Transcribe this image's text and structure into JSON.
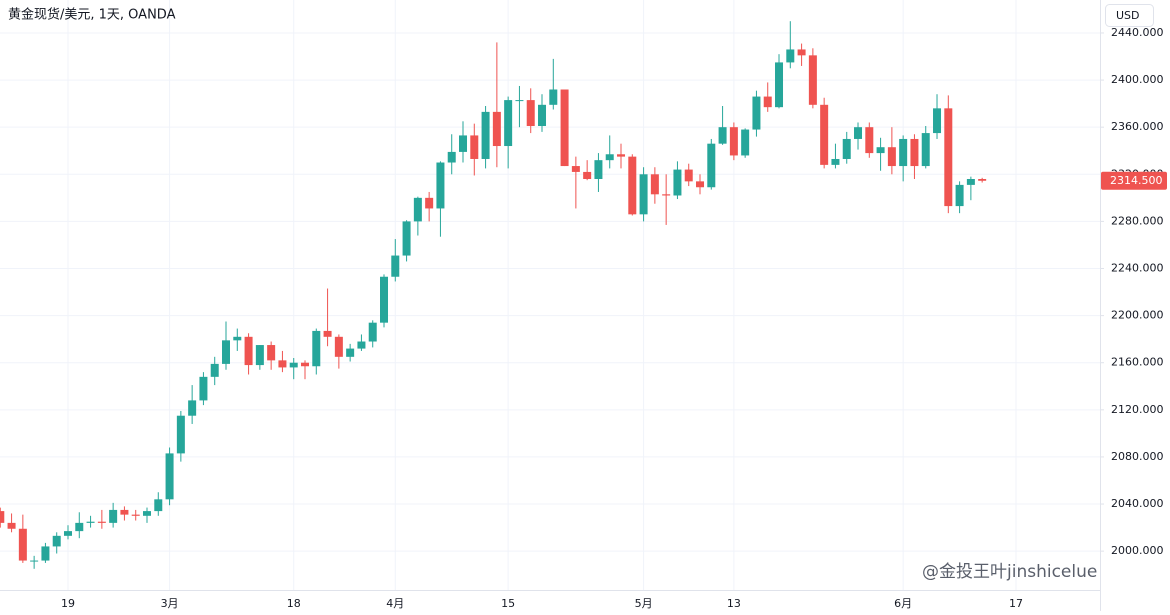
{
  "chart_data": {
    "type": "candlestick",
    "title": "黄金现货/美元, 1天, OANDA",
    "currency_button": "USD",
    "watermark": "@金投王叶jinshicelue",
    "up_color": "#26a69a",
    "down_color": "#ef5350",
    "grid": true,
    "categories": [
      null,
      null,
      null,
      null,
      null,
      null,
      "19",
      null,
      null,
      null,
      null,
      null,
      null,
      null,
      null,
      "3月",
      null,
      null,
      null,
      null,
      null,
      null,
      null,
      null,
      null,
      null,
      "18",
      null,
      null,
      null,
      null,
      null,
      null,
      null,
      null,
      "4月",
      null,
      null,
      null,
      null,
      null,
      null,
      null,
      null,
      null,
      "15",
      null,
      null,
      null,
      null,
      null,
      null,
      null,
      null,
      null,
      null,
      null,
      "5月",
      null,
      null,
      null,
      null,
      null,
      null,
      null,
      "13",
      null,
      null,
      null,
      null,
      null,
      null,
      null,
      null,
      null,
      null,
      null,
      null,
      null,
      null,
      "6月",
      null,
      null,
      null,
      null,
      null,
      null,
      null,
      null,
      null,
      "17",
      null,
      null,
      null,
      null,
      null,
      null
    ],
    "open": [
      2034,
      2024,
      2019,
      1992,
      1992,
      2004,
      2013,
      2017,
      2024,
      2025,
      2024,
      2035,
      2031,
      2030,
      2034,
      2044,
      2083,
      2115,
      2128,
      2148,
      2159,
      2179,
      2182,
      2158,
      2175,
      2162,
      2156,
      2160,
      2157,
      2187,
      2182,
      2165,
      2172,
      2178,
      2194,
      2233,
      2251,
      2280,
      2300,
      2291,
      2330,
      2339,
      2353,
      2333,
      2373,
      2344,
      2383,
      2383,
      2361,
      2379,
      2392,
      2327,
      2322,
      2316,
      2332,
      2337,
      2335,
      2286,
      2320,
      2303,
      2302,
      2324,
      2314,
      2309,
      2346,
      2360,
      2336,
      2358,
      2386,
      2377,
      2415,
      2426,
      2421,
      2379,
      2328,
      2333,
      2350,
      2360,
      2338,
      2343,
      2327,
      2350,
      2327,
      2355,
      2376,
      2293,
      2311,
      2316,
      null,
      null,
      null,
      null,
      null,
      null,
      null,
      null,
      null
    ],
    "high": [
      2037,
      2032,
      2031,
      1996,
      2007,
      2016,
      2022,
      2033,
      2030,
      2035,
      2041,
      2038,
      2035,
      2037,
      2050,
      2088,
      2119,
      2141,
      2152,
      2165,
      2195,
      2189,
      2185,
      2175,
      2178,
      2170,
      2164,
      2162,
      2189,
      2223,
      2184,
      2176,
      2184,
      2196,
      2235,
      2265,
      2281,
      2301,
      2305,
      2331,
      2354,
      2365,
      2363,
      2378,
      2432,
      2386,
      2395,
      2393,
      2388,
      2418,
      2392,
      2335,
      2332,
      2338,
      2353,
      2346,
      2337,
      2326,
      2326,
      2320,
      2331,
      2329,
      2320,
      2350,
      2378,
      2364,
      2359,
      2391,
      2398,
      2422,
      2450,
      2431,
      2427,
      2385,
      2346,
      2356,
      2364,
      2364,
      2351,
      2360,
      2353,
      2354,
      2361,
      2388,
      2387,
      2314,
      2318,
      2317,
      null,
      null,
      null,
      null,
      null,
      null,
      null,
      null,
      null
    ],
    "low": [
      2020,
      2016,
      1990,
      1985,
      1990,
      1998,
      2010,
      2011,
      2020,
      2019,
      2020,
      2026,
      2026,
      2024,
      2030,
      2039,
      2076,
      2108,
      2124,
      2141,
      2154,
      2170,
      2150,
      2154,
      2154,
      2152,
      2146,
      2146,
      2150,
      2174,
      2155,
      2161,
      2170,
      2173,
      2190,
      2229,
      2246,
      2268,
      2280,
      2267,
      2320,
      2330,
      2319,
      2325,
      2326,
      2325,
      2360,
      2355,
      2356,
      2375,
      2327,
      2291,
      2315,
      2305,
      2325,
      2325,
      2285,
      2280,
      2295,
      2277,
      2299,
      2310,
      2303,
      2307,
      2345,
      2332,
      2334,
      2352,
      2373,
      2376,
      2410,
      2412,
      2376,
      2325,
      2325,
      2329,
      2341,
      2334,
      2323,
      2320,
      2314,
      2316,
      2325,
      2350,
      2287,
      2287,
      2298,
      2313,
      null,
      null,
      null,
      null,
      null,
      null,
      null,
      null,
      null
    ],
    "close": [
      2024,
      2019,
      1992,
      1992,
      2004,
      2013,
      2017,
      2024,
      2025,
      2024,
      2035,
      2031,
      2030,
      2034,
      2044,
      2083,
      2115,
      2128,
      2148,
      2159,
      2179,
      2182,
      2158,
      2175,
      2162,
      2156,
      2160,
      2157,
      2187,
      2182,
      2165,
      2172,
      2178,
      2194,
      2233,
      2251,
      2280,
      2300,
      2291,
      2330,
      2339,
      2353,
      2333,
      2373,
      2344,
      2383,
      2383,
      2361,
      2379,
      2392,
      2327,
      2322,
      2316,
      2332,
      2337,
      2335,
      2286,
      2320,
      2303,
      2302,
      2324,
      2314,
      2309,
      2346,
      2360,
      2336,
      2358,
      2386,
      2377,
      2415,
      2426,
      2421,
      2379,
      2328,
      2333,
      2350,
      2360,
      2338,
      2343,
      2327,
      2350,
      2327,
      2355,
      2376,
      2293,
      2311,
      2316,
      2314.5,
      null,
      null,
      null,
      null,
      null,
      null,
      null,
      null,
      null
    ],
    "last_price": {
      "value": 2314.5,
      "label": "2314.500"
    },
    "ylim": [
      1967,
      2468
    ],
    "yticks": [
      {
        "value": 2000,
        "label": "2000.000"
      },
      {
        "value": 2040,
        "label": "2040.000"
      },
      {
        "value": 2080,
        "label": "2080.000"
      },
      {
        "value": 2120,
        "label": "2120.000"
      },
      {
        "value": 2160,
        "label": "2160.000"
      },
      {
        "value": 2200,
        "label": "2200.000"
      },
      {
        "value": 2240,
        "label": "2240.000"
      },
      {
        "value": 2280,
        "label": "2280.000"
      },
      {
        "value": 2320,
        "label": "2320.000"
      },
      {
        "value": 2360,
        "label": "2360.000"
      },
      {
        "value": 2400,
        "label": "2400.000"
      },
      {
        "value": 2440,
        "label": "2440.000"
      }
    ]
  }
}
